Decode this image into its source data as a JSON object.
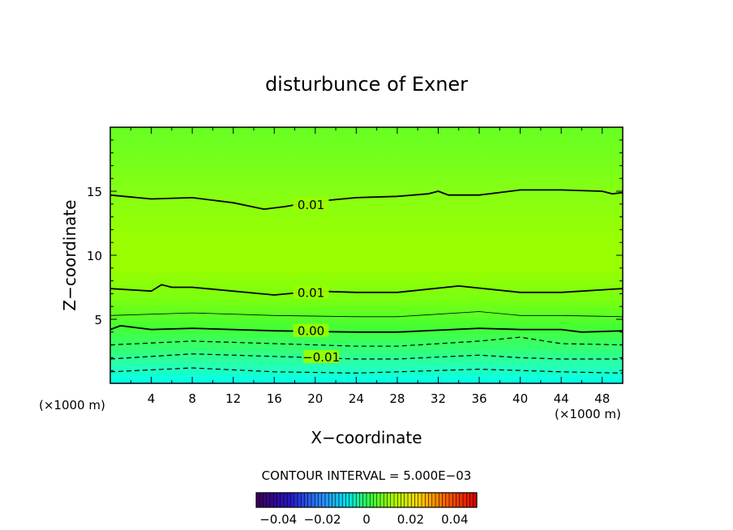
{
  "chart_data": {
    "type": "contour",
    "title": "disturbunce of Exner",
    "xlabel": "X−coordinate",
    "ylabel": "Z−coordinate",
    "x_unit_left": "(×1000 m)",
    "x_unit_right": "(×1000 m)",
    "xlim": [
      0,
      50
    ],
    "ylim": [
      0,
      20
    ],
    "x_ticks": [
      4,
      8,
      12,
      16,
      20,
      24,
      28,
      32,
      36,
      40,
      44,
      48
    ],
    "y_ticks": [
      5,
      10,
      15
    ],
    "contour_interval_label": "CONTOUR INTERVAL = 5.000E−03",
    "contours": [
      {
        "level": -0.015,
        "style": "dashed",
        "label": "",
        "points": [
          [
            0,
            0.9
          ],
          [
            8,
            1.2
          ],
          [
            16,
            0.9
          ],
          [
            24,
            0.8
          ],
          [
            28,
            0.9
          ],
          [
            36,
            1.1
          ],
          [
            44,
            0.9
          ],
          [
            50,
            0.8
          ]
        ]
      },
      {
        "level": -0.01,
        "style": "dashed",
        "label": "−0.01",
        "label_x": 19,
        "points": [
          [
            0,
            1.9
          ],
          [
            8,
            2.3
          ],
          [
            16,
            2.1
          ],
          [
            24,
            1.9
          ],
          [
            28,
            1.9
          ],
          [
            36,
            2.2
          ],
          [
            40,
            2.0
          ],
          [
            44,
            1.9
          ],
          [
            50,
            1.9
          ]
        ]
      },
      {
        "level": -0.005,
        "style": "dashed",
        "label": "",
        "points": [
          [
            0,
            3.0
          ],
          [
            8,
            3.3
          ],
          [
            16,
            3.1
          ],
          [
            24,
            2.9
          ],
          [
            28,
            2.9
          ],
          [
            36,
            3.3
          ],
          [
            40,
            3.6
          ],
          [
            44,
            3.1
          ],
          [
            50,
            3.0
          ]
        ]
      },
      {
        "level": 0.0,
        "style": "solid-thick",
        "label": "0.00",
        "label_x": 18,
        "points": [
          [
            0,
            4.2
          ],
          [
            1,
            4.5
          ],
          [
            4,
            4.2
          ],
          [
            8,
            4.3
          ],
          [
            16,
            4.1
          ],
          [
            24,
            4.0
          ],
          [
            28,
            4.0
          ],
          [
            36,
            4.3
          ],
          [
            40,
            4.2
          ],
          [
            44,
            4.2
          ],
          [
            46,
            4.0
          ],
          [
            50,
            4.1
          ]
        ]
      },
      {
        "level": 0.005,
        "style": "solid-thin",
        "label": "",
        "points": [
          [
            0,
            5.3
          ],
          [
            8,
            5.5
          ],
          [
            16,
            5.3
          ],
          [
            24,
            5.2
          ],
          [
            28,
            5.2
          ],
          [
            36,
            5.6
          ],
          [
            40,
            5.3
          ],
          [
            44,
            5.3
          ],
          [
            50,
            5.2
          ]
        ]
      },
      {
        "level": 0.01,
        "style": "solid-thick",
        "label": "0.01",
        "label_x": 18,
        "points": [
          [
            0,
            7.4
          ],
          [
            4,
            7.2
          ],
          [
            5,
            7.7
          ],
          [
            6,
            7.5
          ],
          [
            8,
            7.5
          ],
          [
            16,
            6.9
          ],
          [
            20,
            7.2
          ],
          [
            24,
            7.1
          ],
          [
            28,
            7.1
          ],
          [
            34,
            7.6
          ],
          [
            40,
            7.1
          ],
          [
            44,
            7.1
          ],
          [
            50,
            7.4
          ]
        ]
      },
      {
        "level": 0.01,
        "style": "solid-thick",
        "label": "0.01",
        "label_x": 18,
        "points": [
          [
            0,
            14.7
          ],
          [
            4,
            14.4
          ],
          [
            8,
            14.5
          ],
          [
            12,
            14.1
          ],
          [
            15,
            13.6
          ],
          [
            17,
            13.8
          ],
          [
            20,
            14.2
          ],
          [
            24,
            14.5
          ],
          [
            28,
            14.6
          ],
          [
            31,
            14.8
          ],
          [
            32,
            15.0
          ],
          [
            33,
            14.7
          ],
          [
            36,
            14.7
          ],
          [
            40,
            15.1
          ],
          [
            44,
            15.1
          ],
          [
            48,
            15.0
          ],
          [
            49,
            14.8
          ],
          [
            50,
            14.9
          ]
        ]
      }
    ],
    "colorbar": {
      "tick_labels": [
        "−0.04",
        "−0.02",
        "0",
        "0.02",
        "0.04"
      ],
      "tick_values": [
        -0.04,
        -0.02,
        0,
        0.02,
        0.04
      ],
      "range": [
        -0.05,
        0.05
      ]
    }
  }
}
